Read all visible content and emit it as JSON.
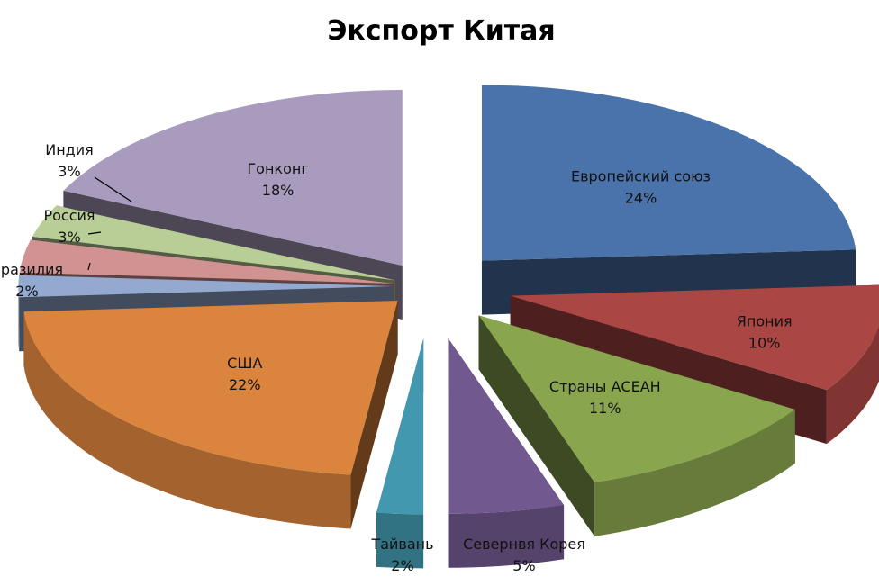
{
  "chart_data": {
    "type": "pie",
    "title": "Экспорт Китая",
    "slices": [
      {
        "label": "Европейский союз",
        "value": 24,
        "value_label": "24%",
        "color": "#4A72AB"
      },
      {
        "label": "Япония",
        "value": 10,
        "value_label": "10%",
        "color": "#AA4644"
      },
      {
        "label": "Страны АСЕАН",
        "value": 11,
        "value_label": "11%",
        "color": "#89A54E"
      },
      {
        "label": "Севернвя Корея",
        "value": 5,
        "value_label": "5%",
        "color": "#71598F"
      },
      {
        "label": "Тайвань",
        "value": 2,
        "value_label": "2%",
        "color": "#4198AF"
      },
      {
        "label": "США",
        "value": 22,
        "value_label": "22%",
        "color": "#DB843D"
      },
      {
        "label": "Бразилия",
        "value": 2,
        "value_label": "2%",
        "color": "#93A9CF"
      },
      {
        "label": "Россия",
        "value": 3,
        "value_label": "3%",
        "color": "#D19392"
      },
      {
        "label": "Индия",
        "value": 3,
        "value_label": "3%",
        "color": "#B9CD96"
      },
      {
        "label": "Гонконг",
        "value": 18,
        "value_label": "18%",
        "color": "#A99BBD"
      }
    ],
    "legend": "none",
    "style": "3d-exploded"
  }
}
